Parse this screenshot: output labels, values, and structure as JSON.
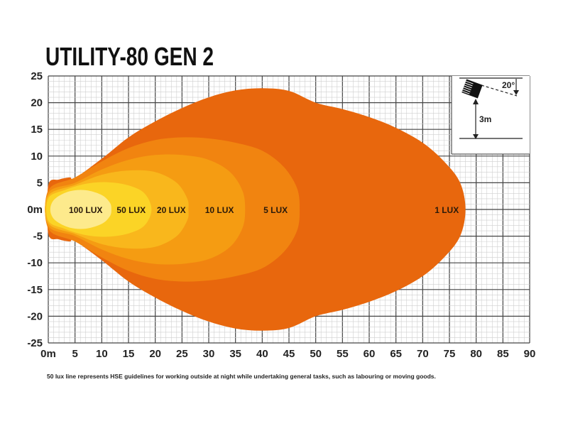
{
  "chart_data": {
    "type": "area",
    "title": "UTILITY-80 GEN 2",
    "xlabel": "",
    "ylabel": "",
    "xlim": [
      0,
      90
    ],
    "ylim": [
      -25,
      25
    ],
    "x_ticks": [
      "0m",
      "5",
      "10",
      "15",
      "20",
      "25",
      "30",
      "35",
      "40",
      "45",
      "50",
      "55",
      "60",
      "65",
      "70",
      "75",
      "80",
      "85",
      "90"
    ],
    "y_ticks": [
      "25",
      "20",
      "15",
      "10",
      "5",
      "0m",
      "-5",
      "-10",
      "-15",
      "-20",
      "-25"
    ],
    "grid": true,
    "series": [
      {
        "name": "1 LUX",
        "color": "#e8670d",
        "label_x": 74.5,
        "upper": [
          [
            0,
            4.5
          ],
          [
            2,
            5.6
          ],
          [
            4,
            6
          ],
          [
            5,
            5.9
          ],
          [
            10,
            9.5
          ],
          [
            15,
            13.5
          ],
          [
            20,
            16.5
          ],
          [
            25,
            19
          ],
          [
            30,
            21
          ],
          [
            35,
            22.3
          ],
          [
            40,
            22.7
          ],
          [
            45,
            22.2
          ],
          [
            50,
            20
          ],
          [
            55,
            18.8
          ],
          [
            60,
            17.3
          ],
          [
            65,
            15.3
          ],
          [
            70,
            12.5
          ],
          [
            74,
            9
          ],
          [
            77,
            5
          ],
          [
            78,
            0
          ]
        ]
      },
      {
        "name": "5 LUX",
        "color": "#f18410",
        "label_x": 42.5,
        "upper": [
          [
            0,
            3.6
          ],
          [
            5,
            6
          ],
          [
            10,
            9
          ],
          [
            15,
            11.5
          ],
          [
            20,
            13
          ],
          [
            25,
            13.5
          ],
          [
            30,
            13.3
          ],
          [
            35,
            12.5
          ],
          [
            40,
            11
          ],
          [
            44,
            8
          ],
          [
            46.5,
            4
          ],
          [
            47,
            0
          ]
        ]
      },
      {
        "name": "10 LUX",
        "color": "#f59c12",
        "label_x": 32,
        "upper": [
          [
            0,
            3.1
          ],
          [
            5,
            5
          ],
          [
            10,
            7.5
          ],
          [
            15,
            9.3
          ],
          [
            20,
            10.2
          ],
          [
            25,
            10.2
          ],
          [
            30,
            9.3
          ],
          [
            34,
            7
          ],
          [
            36.3,
            3.5
          ],
          [
            36.8,
            0
          ]
        ]
      },
      {
        "name": "20 LUX",
        "color": "#f9b71c",
        "label_x": 23,
        "upper": [
          [
            0,
            2.6
          ],
          [
            5,
            4.6
          ],
          [
            10,
            6.5
          ],
          [
            15,
            7.3
          ],
          [
            20,
            7
          ],
          [
            24,
            5
          ],
          [
            26,
            2
          ],
          [
            26.2,
            0
          ]
        ]
      },
      {
        "name": "50 LUX",
        "color": "#fbd426",
        "label_x": 15.5,
        "upper": [
          [
            0,
            2.1
          ],
          [
            3,
            3.6
          ],
          [
            7,
            4.8
          ],
          [
            11,
            5.1
          ],
          [
            15,
            4.5
          ],
          [
            18,
            3
          ],
          [
            19.3,
            0
          ]
        ]
      },
      {
        "name": "100 LUX",
        "color": "#fdea8c",
        "label_x": 7,
        "upper": [
          [
            0.5,
            0.8
          ],
          [
            1.5,
            2.2
          ],
          [
            4,
            3.4
          ],
          [
            7,
            3.6
          ],
          [
            10,
            2.7
          ],
          [
            11.5,
            1.3
          ],
          [
            11.8,
            0
          ]
        ]
      }
    ],
    "inset": {
      "angle_label": "20°",
      "height_label": "3m"
    },
    "footnote": "50 lux line represents HSE guidelines for working outside at night while undertaking general tasks, such as labouring or moving goods."
  }
}
